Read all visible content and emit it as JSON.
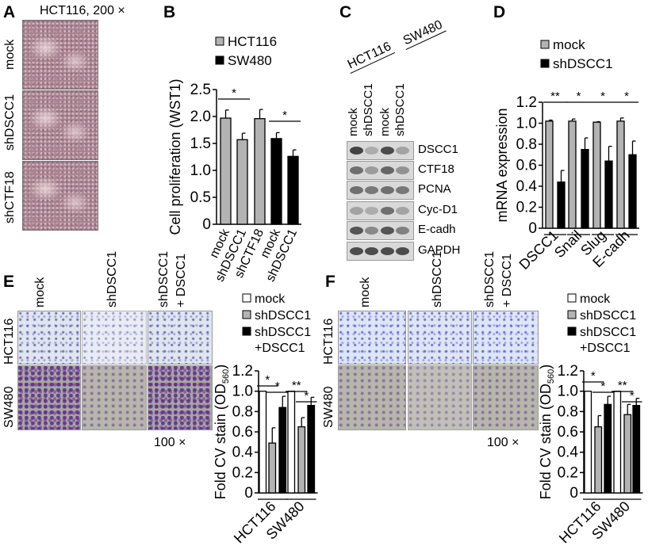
{
  "panels": {
    "A": {
      "label": "A",
      "title": "HCT116, 200 ×",
      "rows": [
        "mock",
        "shDSCC1",
        "shCTF18"
      ]
    },
    "B": {
      "label": "B"
    },
    "C": {
      "label": "C",
      "cell_lines": [
        "HCT116",
        "SW480"
      ],
      "lanes": [
        "mock",
        "shDSCC1",
        "mock",
        "shDSCC1"
      ],
      "proteins": [
        "DSCC1",
        "CTF18",
        "PCNA",
        "Cyc-D1",
        "E-cadh",
        "GAPDH"
      ]
    },
    "D": {
      "label": "D"
    },
    "E": {
      "label": "E",
      "columns": [
        "mock",
        "shDSCC1",
        "shDSCC1",
        "+ DSCC1"
      ],
      "rows": [
        "HCT116",
        "SW480"
      ],
      "magnification": "100 ×"
    },
    "F": {
      "label": "F",
      "columns": [
        "mock",
        "shDSCC1",
        "shDSCC1",
        "+ DSCC1"
      ],
      "rows": [
        "HCT116",
        "SW480"
      ],
      "magnification": "100 ×"
    }
  },
  "chart_data": [
    {
      "panel": "B",
      "type": "bar",
      "ylabel": "Cell proliferation (WST1)",
      "ylim": [
        0,
        2.5
      ],
      "yticks": [
        "0",
        "0.5",
        "1.0",
        "1.5",
        "2.0",
        "2.5"
      ],
      "categories": [
        "mock",
        "shDSCC1",
        "shCTF18",
        "mock",
        "shDSCC1"
      ],
      "legend": [
        {
          "name": "HCT116",
          "color": "#b3b3b3"
        },
        {
          "name": "SW480",
          "color": "#000000"
        }
      ],
      "legend_placement": "top-left",
      "bars": [
        {
          "group": 0,
          "series": "HCT116",
          "value": 1.97,
          "error": 0.15
        },
        {
          "group": 1,
          "series": "HCT116",
          "value": 1.57,
          "error": 0.12
        },
        {
          "group": 2,
          "series": "HCT116",
          "value": 1.96,
          "error": 0.17
        },
        {
          "group": 3,
          "series": "SW480",
          "value": 1.59,
          "error": 0.11
        },
        {
          "group": 4,
          "series": "SW480",
          "value": 1.26,
          "error": 0.12
        }
      ],
      "significance": [
        {
          "label": "*",
          "from": 0,
          "to": 1
        },
        {
          "label": "*",
          "from": 3,
          "to": 4
        }
      ]
    },
    {
      "panel": "D",
      "type": "bar",
      "ylabel": "mRNA expression",
      "ylim": [
        0,
        1.2
      ],
      "yticks": [
        "0",
        "0.2",
        "0.4",
        "0.6",
        "0.8",
        "1.0",
        "1.2"
      ],
      "categories": [
        "DSCC1",
        "Snail",
        "Slug",
        "E-cadh"
      ],
      "legend": [
        {
          "name": "mock",
          "color": "#b3b3b3"
        },
        {
          "name": "shDSCC1",
          "color": "#000000"
        }
      ],
      "legend_placement": "top",
      "bars": [
        {
          "group": 0,
          "series": "mock",
          "value": 1.02,
          "error": 0.01
        },
        {
          "group": 0,
          "series": "shDSCC1",
          "value": 0.44,
          "error": 0.11
        },
        {
          "group": 1,
          "series": "mock",
          "value": 1.02,
          "error": 0.02
        },
        {
          "group": 1,
          "series": "shDSCC1",
          "value": 0.75,
          "error": 0.11
        },
        {
          "group": 2,
          "series": "mock",
          "value": 1.01,
          "error": 0.005
        },
        {
          "group": 2,
          "series": "shDSCC1",
          "value": 0.64,
          "error": 0.14
        },
        {
          "group": 3,
          "series": "mock",
          "value": 1.02,
          "error": 0.03
        },
        {
          "group": 3,
          "series": "shDSCC1",
          "value": 0.7,
          "error": 0.13
        }
      ],
      "significance": [
        {
          "label": "**",
          "from": 0,
          "to": 1
        },
        {
          "label": "*",
          "from": 2,
          "to": 3
        },
        {
          "label": "*",
          "from": 4,
          "to": 5
        },
        {
          "label": "*",
          "from": 6,
          "to": 7
        }
      ]
    },
    {
      "panel": "E",
      "type": "bar",
      "ylabel": "Fold CV stain (OD",
      "ylabel_sub": "560",
      "ylabel_end": ")",
      "ylim": [
        0,
        1.2
      ],
      "yticks": [
        "0",
        "0.2",
        "0.4",
        "0.6",
        "0.8",
        "1.0",
        "1.2"
      ],
      "categories": [
        "HCT116",
        "SW480"
      ],
      "legend": [
        {
          "name": "mock",
          "color": "#ffffff"
        },
        {
          "name": "shDSCC1",
          "color": "#b3b3b3"
        },
        {
          "name": "shDSCC1",
          "name_line2": "+DSCC1",
          "color": "#000000"
        }
      ],
      "legend_placement": "top",
      "bars": [
        {
          "group": 0,
          "series": "mock",
          "value": 1.0,
          "error": 0
        },
        {
          "group": 0,
          "series": "shDSCC1",
          "value": 0.49,
          "error": 0.15
        },
        {
          "group": 0,
          "series": "shDSCC1 +DSCC1",
          "value": 0.84,
          "error": 0.11
        },
        {
          "group": 1,
          "series": "mock",
          "value": 1.0,
          "error": 0
        },
        {
          "group": 1,
          "series": "shDSCC1",
          "value": 0.65,
          "error": 0.09
        },
        {
          "group": 1,
          "series": "shDSCC1 +DSCC1",
          "value": 0.86,
          "error": 0.08
        }
      ],
      "significance": [
        {
          "label": "*",
          "from": 0,
          "to": 1
        },
        {
          "label": "*",
          "from": 1,
          "to": 2
        },
        {
          "label": "**",
          "from": 3,
          "to": 4
        },
        {
          "label": "*",
          "from": 4,
          "to": 5
        }
      ]
    },
    {
      "panel": "F",
      "type": "bar",
      "ylabel": "Fold CV stain (OD",
      "ylabel_sub": "560",
      "ylabel_end": ")",
      "ylim": [
        0,
        1.2
      ],
      "yticks": [
        "0",
        "0.2",
        "0.4",
        "0.6",
        "0.8",
        "1.0",
        "1.2"
      ],
      "categories": [
        "HCT116",
        "SW480"
      ],
      "legend": [
        {
          "name": "mock",
          "color": "#ffffff"
        },
        {
          "name": "shDSCC1",
          "color": "#b3b3b3"
        },
        {
          "name": "shDSCC1",
          "name_line2": "+DSCC1",
          "color": "#000000"
        }
      ],
      "legend_placement": "top",
      "bars": [
        {
          "group": 0,
          "series": "mock",
          "value": 1.0,
          "error": 0
        },
        {
          "group": 0,
          "series": "shDSCC1",
          "value": 0.65,
          "error": 0.11
        },
        {
          "group": 0,
          "series": "shDSCC1 +DSCC1",
          "value": 0.87,
          "error": 0.08
        },
        {
          "group": 1,
          "series": "mock",
          "value": 1.0,
          "error": 0
        },
        {
          "group": 1,
          "series": "shDSCC1",
          "value": 0.77,
          "error": 0.1
        },
        {
          "group": 1,
          "series": "shDSCC1 +DSCC1",
          "value": 0.86,
          "error": 0.07
        }
      ],
      "significance": [
        {
          "label": "*",
          "from": 0,
          "to": 1
        },
        {
          "label": "*",
          "from": 1,
          "to": 2
        },
        {
          "label": "**",
          "from": 3,
          "to": 4
        },
        {
          "label": "*",
          "from": 4,
          "to": 5
        }
      ]
    }
  ]
}
